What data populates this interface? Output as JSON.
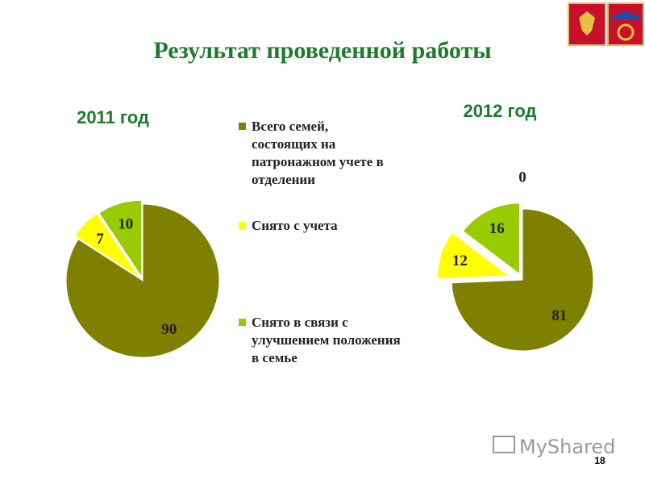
{
  "title": "Результат проведенной работы",
  "page_number": "18",
  "watermark": "MyShared",
  "legend": [
    {
      "name": "Всего семей, состоящих на патронажном учете в отделении",
      "color": "#808000"
    },
    {
      "name": "Снято с учета",
      "color": "#ffff00"
    },
    {
      "name": "Снято в связи с улучшением положения в семье",
      "color": "#99cc00"
    }
  ],
  "chart_data": [
    {
      "type": "pie",
      "title": "2011 год",
      "values": [
        90,
        7,
        10
      ]
    },
    {
      "type": "pie",
      "title": "2012 год",
      "values": [
        81,
        12,
        16,
        0
      ]
    }
  ]
}
